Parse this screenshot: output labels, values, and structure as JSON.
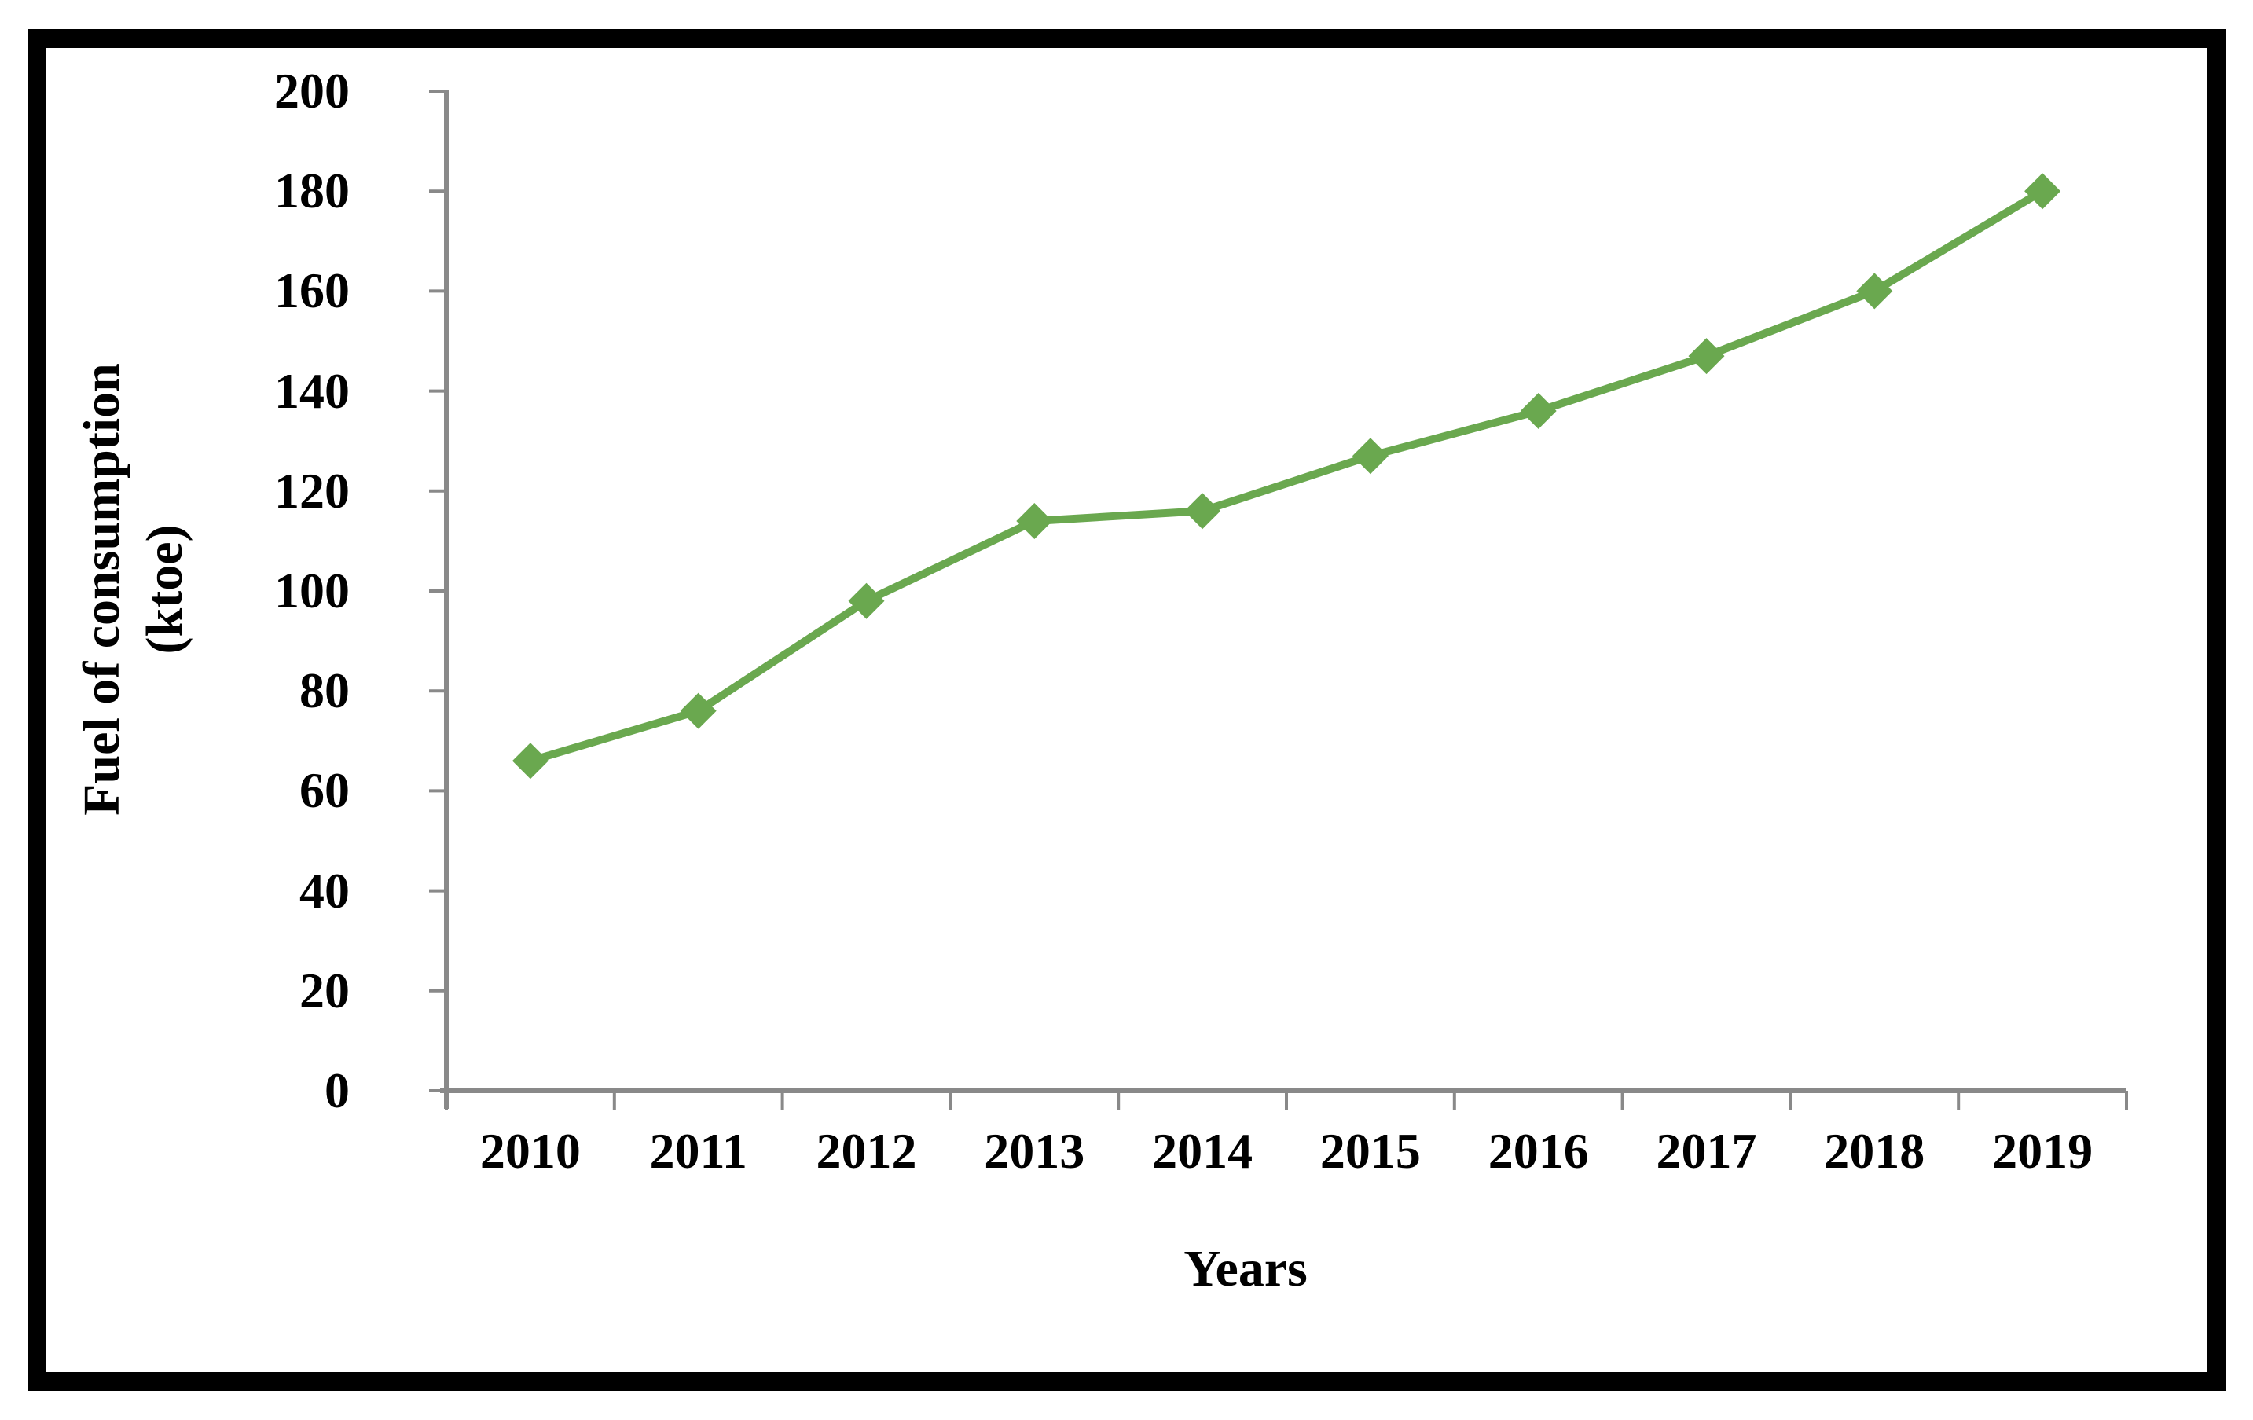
{
  "chart_data": {
    "type": "line",
    "categories": [
      "2010",
      "2011",
      "2012",
      "2013",
      "2014",
      "2015",
      "2016",
      "2017",
      "2018",
      "2019"
    ],
    "values": [
      66,
      76,
      98,
      114,
      116,
      127,
      136,
      147,
      160,
      180
    ],
    "xlabel": "Years",
    "ylabel": "Fuel of consumption (ktoe)",
    "ylabel_lines": [
      "Fuel of consumption",
      "(ktoe)"
    ],
    "yticks": [
      0,
      20,
      40,
      60,
      80,
      100,
      120,
      140,
      160,
      180,
      200
    ],
    "ylim": [
      0,
      200
    ],
    "grid": false,
    "legend": "none",
    "marker": "diamond",
    "colors": {
      "line": "#6aa84f",
      "marker": "#6aa84f",
      "axis": "#898989",
      "text": "#000000",
      "frame": "#000000",
      "background": "#ffffff"
    }
  }
}
